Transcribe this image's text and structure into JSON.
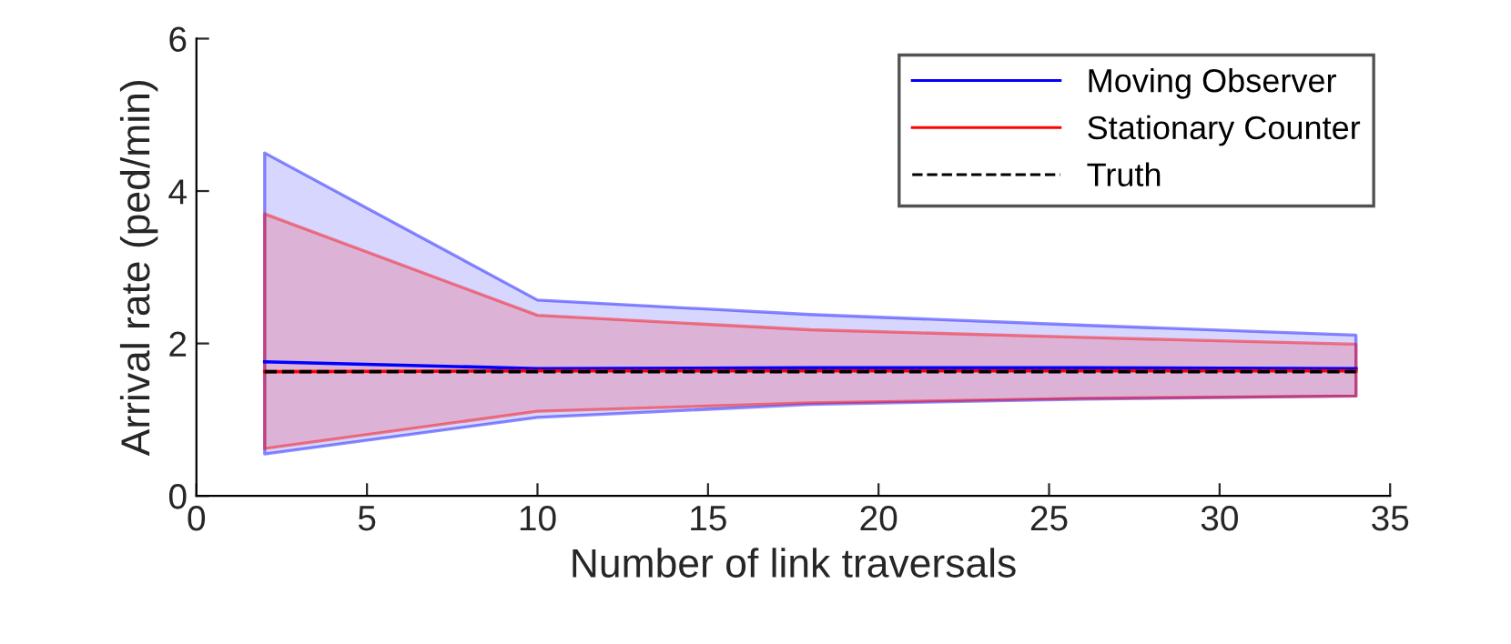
{
  "chart_data": {
    "type": "line",
    "xlabel": "Number of link traversals",
    "ylabel": "Arrival rate (ped/min)",
    "x": [
      2,
      10,
      18,
      26,
      34
    ],
    "series": [
      {
        "name": "Moving Observer",
        "color": "#0000ff",
        "values": [
          1.76,
          1.67,
          1.68,
          1.68,
          1.67
        ],
        "lower": [
          0.55,
          1.03,
          1.2,
          1.27,
          1.31
        ],
        "upper": [
          4.5,
          2.57,
          2.38,
          2.24,
          2.11
        ]
      },
      {
        "name": "Stationary Counter",
        "color": "#ff0000",
        "values": [
          1.63,
          1.64,
          1.64,
          1.64,
          1.64
        ],
        "lower": [
          0.62,
          1.11,
          1.22,
          1.28,
          1.31
        ],
        "upper": [
          3.7,
          2.37,
          2.18,
          2.08,
          1.99
        ]
      },
      {
        "name": "Truth",
        "color": "#000000",
        "line_style": "dashed",
        "values": [
          1.63,
          1.63,
          1.63,
          1.63,
          1.63
        ]
      }
    ],
    "xlim": [
      0,
      35
    ],
    "xticks": [
      0,
      5,
      10,
      15,
      20,
      25,
      30,
      35
    ],
    "ylim": [
      0,
      6
    ],
    "yticks": [
      0,
      2,
      4,
      6
    ],
    "grid": false,
    "legend": "top right"
  }
}
